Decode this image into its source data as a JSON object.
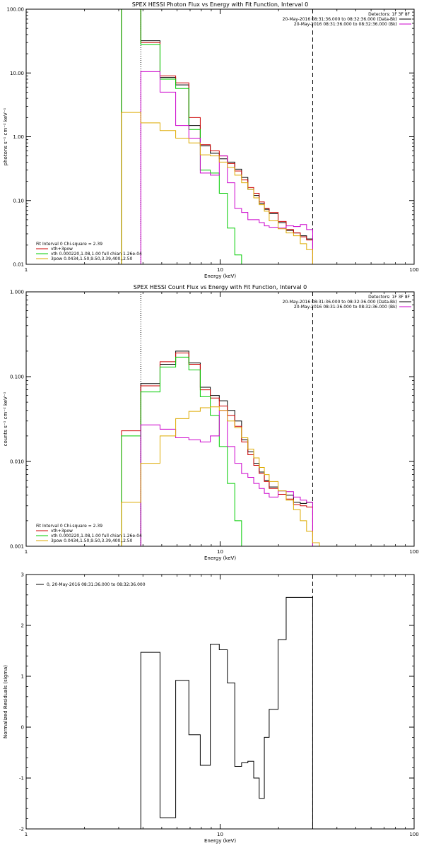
{
  "chart_data": [
    {
      "type": "line",
      "title": "SPEX HESSI Photon Flux vs Energy with Fit Function, Interval 0",
      "xlabel": "Energy (keV)",
      "ylabel": "photons s⁻¹ cm⁻² keV⁻¹",
      "xscale": "log",
      "yscale": "log",
      "xlim": [
        1,
        100
      ],
      "ylim": [
        0.01,
        100
      ],
      "xticks": [
        {
          "v": 1,
          "label": "1"
        },
        {
          "v": 10,
          "label": "10"
        },
        {
          "v": 100,
          "label": "100"
        }
      ],
      "yticks": [
        {
          "v": 0.01,
          "label": "0.01"
        },
        {
          "v": 0.1,
          "label": "0.10"
        },
        {
          "v": 1,
          "label": "1.00"
        },
        {
          "v": 10,
          "label": "10.00"
        },
        {
          "v": 100,
          "label": "100.00"
        }
      ],
      "vlines": [
        {
          "x": 3.9,
          "style": "dotted",
          "color": "#000000"
        },
        {
          "x": 30,
          "style": "dashed",
          "color": "#000000"
        }
      ],
      "legend_tr": [
        {
          "text": "Detectors: 1F 3F 8F",
          "color": ""
        },
        {
          "text": "20-May-2016 08:31:36.000 to 08:32:36.000 (Data-Bk)",
          "color": "#000000"
        },
        {
          "text": "20-May-2016 08:31:36.000 to 08:32:36.000 (Bk)",
          "color": "#cc00cc"
        }
      ],
      "legend_bl": [
        {
          "text": "Fit Interval 0   Chi-square = 2.39",
          "color": ""
        },
        {
          "text": "vth+3pow",
          "color": "#cc0000"
        },
        {
          "text": "vth 0.000220,1.08,1.00  full chian 1.26e-04",
          "color": "#00cc00"
        },
        {
          "text": "3pow 0.0434,1.50,9.50,3.39,400.,2.50",
          "color": "#ddaa00"
        }
      ],
      "series": [
        {
          "color": "#000000",
          "edges": [
            3.1,
            3.9,
            4.9,
            5.9,
            6.9,
            7.9,
            8.9,
            9.9,
            10.9,
            11.9,
            12.9,
            13.9,
            14.9,
            15.9,
            16.9,
            17.9,
            19.9,
            21.9,
            23.9,
            25.9,
            27.9,
            30.0
          ],
          "values": [
            100,
            32,
            8.5,
            6.5,
            1.5,
            0.72,
            0.55,
            0.45,
            0.4,
            0.31,
            0.23,
            0.15,
            0.12,
            0.09,
            0.073,
            0.062,
            0.045,
            0.034,
            0.031,
            0.028,
            0.025
          ]
        },
        {
          "color": "#cc0000",
          "edges": [
            3.1,
            3.9,
            4.9,
            5.9,
            6.9,
            7.9,
            8.9,
            9.9,
            10.9,
            11.9,
            12.9,
            13.9,
            14.9,
            15.9,
            16.9,
            17.9,
            19.9,
            21.9,
            23.9,
            25.9,
            27.9,
            30.0
          ],
          "values": [
            100,
            30,
            9.0,
            7.0,
            2.0,
            0.75,
            0.6,
            0.5,
            0.38,
            0.29,
            0.21,
            0.16,
            0.13,
            0.095,
            0.075,
            0.065,
            0.047,
            0.035,
            0.031,
            0.027,
            0.024
          ]
        },
        {
          "color": "#00cc00",
          "edges": [
            3.1,
            3.9,
            4.9,
            5.9,
            6.9,
            7.9,
            8.9,
            9.9,
            10.9,
            11.9,
            12.9
          ],
          "values": [
            100,
            28,
            8.0,
            5.7,
            1.3,
            0.3,
            0.27,
            0.13,
            0.037,
            0.014
          ]
        },
        {
          "color": "#cc00cc",
          "edges": [
            3.9,
            4.9,
            5.9,
            6.9,
            7.9,
            8.9,
            9.9,
            10.9,
            11.9,
            12.9,
            13.9,
            14.9,
            15.9,
            16.9,
            17.9,
            19.9,
            21.9,
            23.9,
            25.9,
            27.9,
            30.0
          ],
          "values": [
            10.5,
            5.0,
            1.5,
            0.95,
            0.27,
            0.25,
            0.5,
            0.19,
            0.075,
            0.065,
            0.05,
            0.05,
            0.045,
            0.04,
            0.038,
            0.037,
            0.04,
            0.039,
            0.042,
            0.035
          ]
        },
        {
          "color": "#ddaa00",
          "edges": [
            3.1,
            3.9,
            4.9,
            5.9,
            6.9,
            7.9,
            8.9,
            9.9,
            10.9,
            11.9,
            12.9,
            13.9,
            14.9,
            15.9,
            16.9,
            17.9,
            19.9,
            21.9,
            23.9,
            25.9,
            27.9,
            30.0
          ],
          "values": [
            2.4,
            1.65,
            1.25,
            0.95,
            0.8,
            0.52,
            0.5,
            0.4,
            0.33,
            0.25,
            0.19,
            0.15,
            0.11,
            0.086,
            0.068,
            0.048,
            0.036,
            0.031,
            0.028,
            0.021,
            0.017
          ]
        }
      ]
    },
    {
      "type": "line",
      "title": "SPEX HESSI Count Flux vs Energy with Fit Function, Interval 0",
      "xlabel": "Energy (keV)",
      "ylabel": "counts s⁻¹ cm⁻² keV⁻¹",
      "xscale": "log",
      "yscale": "log",
      "xlim": [
        1,
        100
      ],
      "ylim": [
        0.001,
        1
      ],
      "xticks": [
        {
          "v": 1,
          "label": "1"
        },
        {
          "v": 10,
          "label": "10"
        },
        {
          "v": 100,
          "label": "100"
        }
      ],
      "yticks": [
        {
          "v": 0.001,
          "label": "0.001"
        },
        {
          "v": 0.01,
          "label": "0.010"
        },
        {
          "v": 0.1,
          "label": "0.100"
        },
        {
          "v": 1,
          "label": "1.000"
        }
      ],
      "vlines": [
        {
          "x": 3.9,
          "style": "dotted",
          "color": "#000000"
        },
        {
          "x": 30,
          "style": "dashed",
          "color": "#000000"
        }
      ],
      "legend_tr": [
        {
          "text": "Detectors: 1F 3F 8F",
          "color": ""
        },
        {
          "text": "20-May-2016 08:31:36.000 to 08:32:36.000 (Data-Bk)",
          "color": "#000000"
        },
        {
          "text": "20-May-2016 08:31:36.000 to 08:32:36.000 (Bk)",
          "color": "#cc00cc"
        }
      ],
      "legend_bl": [
        {
          "text": "Fit Interval 0   Chi-square = 2.39",
          "color": ""
        },
        {
          "text": "vth+3pow",
          "color": "#cc0000"
        },
        {
          "text": "vth 0.000220,1.08,1.00  full chian 1.26e-04",
          "color": "#00cc00"
        },
        {
          "text": "3pow 0.0434,1.50,9.50,3.39,400.,2.50",
          "color": "#ddaa00"
        }
      ],
      "series": [
        {
          "color": "#000000",
          "edges": [
            3.9,
            4.9,
            5.9,
            6.9,
            7.9,
            8.9,
            9.9,
            10.9,
            11.9,
            12.9,
            13.9,
            14.9,
            15.9,
            16.9,
            17.9,
            19.9,
            21.9,
            23.9,
            25.9,
            27.9,
            30.0
          ],
          "values": [
            0.083,
            0.14,
            0.2,
            0.145,
            0.075,
            0.06,
            0.052,
            0.04,
            0.03,
            0.018,
            0.013,
            0.0095,
            0.0075,
            0.006,
            0.005,
            0.0045,
            0.004,
            0.0033,
            0.0032,
            0.0033
          ]
        },
        {
          "color": "#cc0000",
          "edges": [
            3.1,
            3.9,
            4.9,
            5.9,
            6.9,
            7.9,
            8.9,
            9.9,
            10.9,
            11.9,
            12.9,
            13.9,
            14.9,
            15.9,
            16.9,
            17.9,
            19.9,
            21.9,
            23.9,
            25.9,
            27.9,
            30.0
          ],
          "values": [
            0.023,
            0.078,
            0.15,
            0.19,
            0.14,
            0.07,
            0.056,
            0.045,
            0.035,
            0.026,
            0.017,
            0.012,
            0.009,
            0.0072,
            0.0058,
            0.0048,
            0.0041,
            0.0036,
            0.0031,
            0.003,
            0.0029
          ]
        },
        {
          "color": "#00cc00",
          "edges": [
            3.1,
            3.9,
            4.9,
            5.9,
            6.9,
            7.9,
            8.9,
            9.9,
            10.9,
            11.9,
            12.9
          ],
          "values": [
            0.02,
            0.066,
            0.13,
            0.17,
            0.12,
            0.058,
            0.035,
            0.015,
            0.0055,
            0.002
          ]
        },
        {
          "color": "#cc00cc",
          "edges": [
            3.9,
            4.9,
            5.9,
            6.9,
            7.9,
            8.9,
            9.9,
            10.9,
            11.9,
            12.9,
            13.9,
            14.9,
            15.9,
            16.9,
            17.9,
            19.9,
            21.9,
            23.9,
            25.9,
            27.9,
            30.0
          ],
          "values": [
            0.027,
            0.024,
            0.019,
            0.018,
            0.017,
            0.02,
            0.04,
            0.015,
            0.0095,
            0.0072,
            0.0065,
            0.0055,
            0.0048,
            0.0042,
            0.0038,
            0.0045,
            0.0044,
            0.0038,
            0.0035,
            0.0033
          ]
        },
        {
          "color": "#ddaa00",
          "edges": [
            3.1,
            3.9,
            4.9,
            5.9,
            6.9,
            7.9,
            8.9,
            9.9,
            10.9,
            11.9,
            12.9,
            13.9,
            14.9,
            15.9,
            16.9,
            17.9,
            19.9,
            21.9,
            23.9,
            25.9,
            27.9,
            30.0,
            32.5
          ],
          "values": [
            0.0033,
            0.0095,
            0.02,
            0.032,
            0.039,
            0.043,
            0.044,
            0.04,
            0.03,
            0.025,
            0.019,
            0.014,
            0.011,
            0.0085,
            0.007,
            0.0058,
            0.0045,
            0.0035,
            0.0027,
            0.002,
            0.0015,
            0.0011
          ]
        }
      ]
    },
    {
      "type": "line",
      "title": "",
      "xlabel": "Energy (keV)",
      "ylabel": "Normalized Residuals (sigma)",
      "xscale": "log",
      "yscale": "linear",
      "xlim": [
        1,
        100
      ],
      "ylim": [
        -2,
        3
      ],
      "xticks": [
        {
          "v": 1,
          "label": "1"
        },
        {
          "v": 10,
          "label": "10"
        },
        {
          "v": 100,
          "label": "100"
        }
      ],
      "yticks": [
        {
          "v": -2,
          "label": "-2"
        },
        {
          "v": -1,
          "label": "-1"
        },
        {
          "v": 0,
          "label": "0"
        },
        {
          "v": 1,
          "label": "1"
        },
        {
          "v": 2,
          "label": "2"
        },
        {
          "v": 3,
          "label": "3"
        }
      ],
      "vlines": [
        {
          "x": 30,
          "style": "dashed",
          "color": "#000000"
        }
      ],
      "legend_tl": [
        {
          "text": "0, 20-May-2016 08:31:36.000 to 08:32:36.000",
          "color": "#000000"
        }
      ],
      "series": [
        {
          "color": "#000000",
          "edges": [
            3.9,
            4.9,
            5.9,
            6.9,
            7.9,
            8.9,
            9.9,
            10.9,
            11.9,
            12.9,
            13.9,
            14.9,
            15.9,
            16.9,
            17.9,
            19.9,
            21.9,
            23.9,
            25.9,
            27.9,
            30.0
          ],
          "values": [
            1.47,
            -1.78,
            0.92,
            -0.15,
            -0.75,
            1.63,
            1.52,
            0.87,
            -0.77,
            -0.7,
            -0.67,
            -1.0,
            -1.4,
            -0.2,
            0.35,
            1.72,
            2.55,
            2.55,
            2.55,
            2.55
          ],
          "drop_to_bottom": true
        }
      ]
    }
  ]
}
